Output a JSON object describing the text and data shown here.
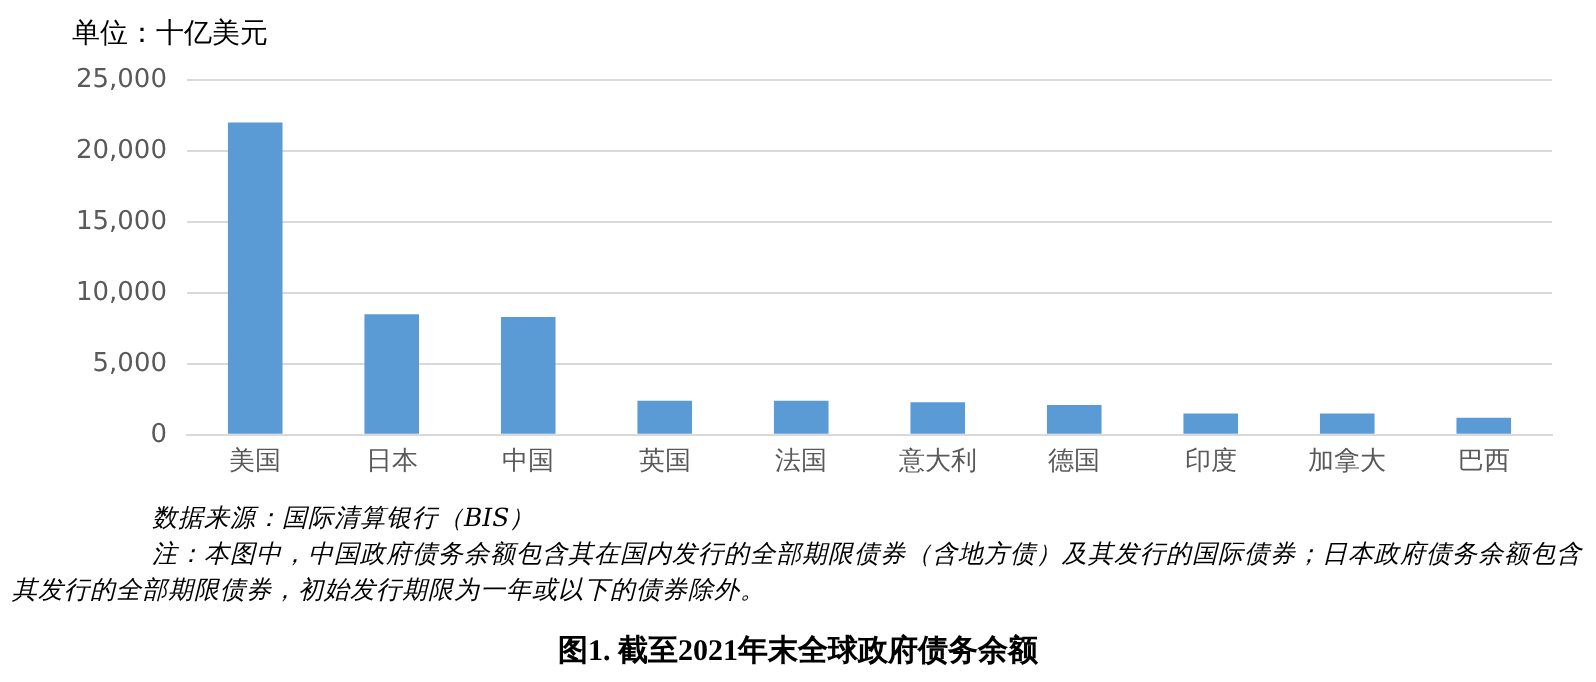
{
  "chart_data": {
    "type": "bar",
    "title": "图1. 截至2021年末全球政府债务余额",
    "ylabel": "单位：十亿美元",
    "categories": [
      "美国",
      "日本",
      "中国",
      "英国",
      "法国",
      "意大利",
      "德国",
      "印度",
      "加拿大",
      "巴西"
    ],
    "values": [
      22000,
      8500,
      8300,
      2400,
      2400,
      2300,
      2100,
      1500,
      1500,
      1200
    ],
    "color": "#5b9bd5",
    "ylim": [
      0,
      25000
    ],
    "yticks": [
      0,
      {
        "value": 5000,
        "label": "5,000"
      },
      {
        "value": 10000,
        "label": "10,000"
      },
      {
        "value": 15000,
        "label": "15,000"
      },
      {
        "value": 20000,
        "label": "20,000"
      },
      {
        "value": 25000,
        "label": "25,000"
      }
    ],
    "grid": "y",
    "annotations": [
      "数据来源：国际清算银行（BIS）",
      "注：本图中，中国政府债务余额包含其在国内发行的全部期限债券（含地方债）及其发行的国际债券；日本政府债务余额包含其发行的全部期限债券，初始发行期限为一年或以下的债券除外。"
    ]
  }
}
